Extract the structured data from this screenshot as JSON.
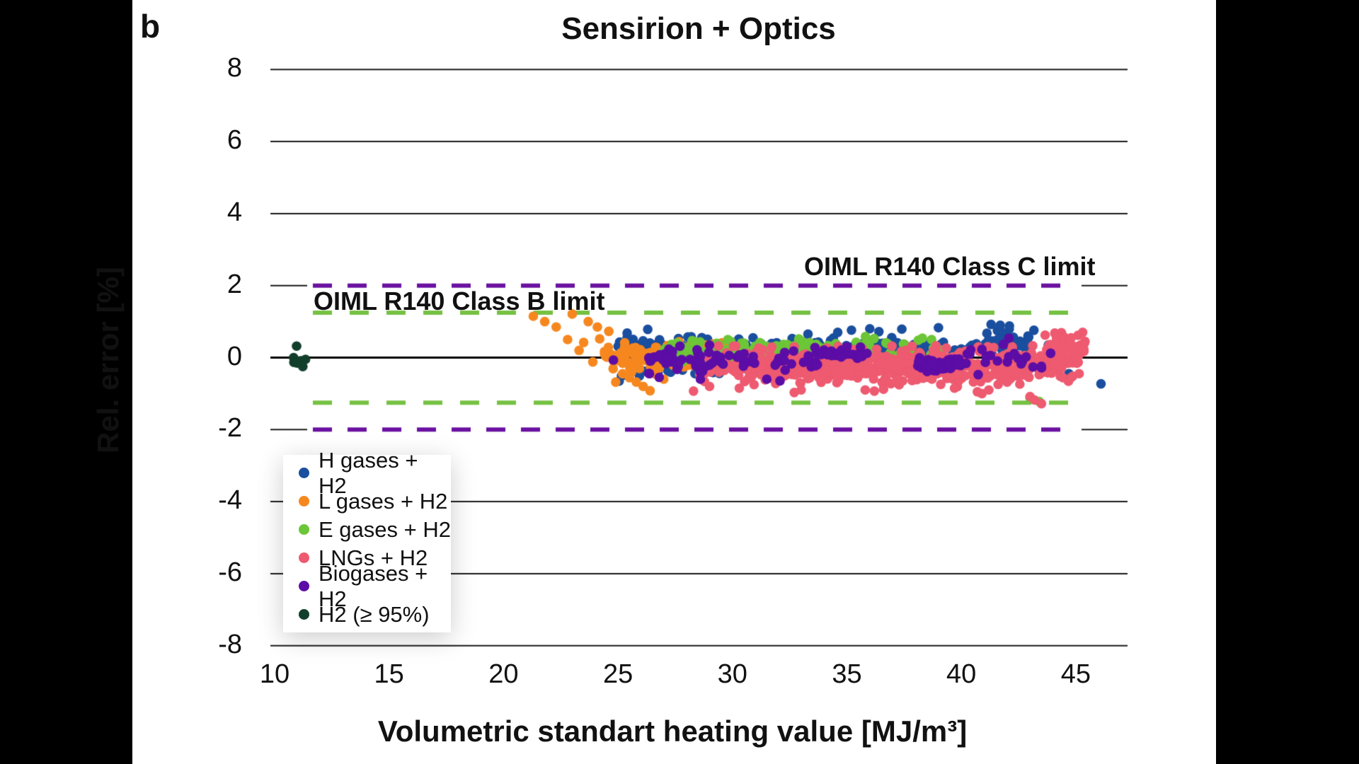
{
  "panel_label": "b",
  "colors": {
    "background": "#000000",
    "panel": "#ffffff",
    "grid": "#1a1a1a",
    "zero_line": "#000000"
  },
  "chart_data": {
    "type": "scatter",
    "title": "Sensirion + Optics",
    "xlabel": "Volumetric standart heating value [MJ/m³]",
    "ylabel": "Rel. error [%]",
    "xlim": [
      9.8,
      47.3
    ],
    "ylim": [
      -8.8,
      8.8
    ],
    "x_ticks": [
      10,
      15,
      20,
      25,
      30,
      35,
      40,
      45
    ],
    "y_ticks": [
      8,
      6,
      4,
      2,
      0,
      -2,
      -4,
      -6,
      -8
    ],
    "grid": "horizontal-only",
    "legend_position": "lower-left",
    "layout": {
      "scatter_seed": 42,
      "point_radius": 6.8
    },
    "limit_lines": [
      {
        "label": "OIML R140 Class C limit",
        "y_abs": 2.0,
        "color": "#6a11a0",
        "style": "dashed"
      },
      {
        "label": "OIML R140 Class B limit",
        "y_abs": 1.25,
        "color": "#76c143",
        "style": "dashed"
      }
    ],
    "series": [
      {
        "name": "H gases + H2",
        "color": "#1a4e9e",
        "clusters": [
          {
            "x0": 25.0,
            "x1": 26.4,
            "y": 0.1,
            "sd": 0.33,
            "n": 26
          },
          {
            "x0": 26.4,
            "x1": 40.6,
            "y": 0.27,
            "sd": 0.13,
            "n": 165
          },
          {
            "x0": 26.6,
            "x1": 29.6,
            "y": -0.3,
            "sd": 0.13,
            "n": 18
          },
          {
            "x0": 40.6,
            "x1": 43.2,
            "y": 0.5,
            "sd": 0.16,
            "n": 40
          }
        ],
        "points": [
          [
            33.3,
            0.65
          ],
          [
            34.6,
            0.7
          ],
          [
            35.2,
            0.76
          ],
          [
            36.0,
            0.8
          ],
          [
            36.4,
            0.72
          ],
          [
            37.4,
            0.79
          ],
          [
            39.0,
            0.83
          ],
          [
            41.3,
            0.92
          ],
          [
            41.7,
            0.9
          ],
          [
            42.1,
            0.88
          ],
          [
            43.8,
            0.35
          ],
          [
            44.7,
            -0.45
          ],
          [
            46.1,
            -0.73
          ],
          [
            30.9,
            0.55
          ],
          [
            28.2,
            0.58
          ],
          [
            25.4,
            0.68
          ],
          [
            43.9,
            -0.3
          ]
        ]
      },
      {
        "name": "L gases + H2",
        "color": "#f6871f",
        "clusters": [
          {
            "x0": 24.4,
            "x1": 30.5,
            "y": 0.07,
            "sd": 0.2,
            "n": 150
          },
          {
            "x0": 29.5,
            "x1": 31.4,
            "y": 0.0,
            "sd": 0.15,
            "n": 15
          }
        ],
        "points": [
          [
            21.3,
            1.15
          ],
          [
            21.8,
            1.0
          ],
          [
            22.3,
            0.85
          ],
          [
            22.8,
            0.5
          ],
          [
            23.0,
            1.21
          ],
          [
            23.7,
            1.0
          ],
          [
            24.1,
            0.85
          ],
          [
            24.6,
            0.73
          ],
          [
            23.3,
            0.2
          ],
          [
            23.9,
            -0.12
          ],
          [
            24.9,
            -0.68
          ],
          [
            25.2,
            -0.45
          ],
          [
            25.5,
            -0.56
          ],
          [
            25.8,
            -0.68
          ],
          [
            26.1,
            -0.8
          ],
          [
            26.4,
            -0.92
          ],
          [
            27.0,
            -0.6
          ],
          [
            26.6,
            -0.45
          ],
          [
            24.2,
            0.52
          ],
          [
            23.5,
            0.42
          ]
        ]
      },
      {
        "name": "E gases + H2",
        "color": "#6cc637",
        "clusters": [
          {
            "x0": 27.0,
            "x1": 34.8,
            "y": 0.16,
            "sd": 0.13,
            "n": 185,
            "ymax": 0.5
          },
          {
            "x0": 34.8,
            "x1": 39.2,
            "y": 0.25,
            "sd": 0.15,
            "n": 28
          }
        ],
        "points": [
          [
            38.3,
            0.54
          ],
          [
            38.7,
            0.5
          ],
          [
            43.0,
            -1.12
          ],
          [
            43.4,
            -1.22
          ],
          [
            29.8,
            0.5
          ],
          [
            32.9,
            0.52
          ]
        ]
      },
      {
        "name": "LNGs + H2",
        "color": "#ee5a70",
        "clusters": [
          {
            "x0": 29.3,
            "x1": 45.2,
            "y": -0.15,
            "sd": 0.22,
            "n": 430,
            "ymax": 0.33,
            "ymin": -0.82
          },
          {
            "x0": 30.5,
            "x1": 43.5,
            "y": -0.45,
            "sd": 0.15,
            "n": 170,
            "ymin": -0.85
          },
          {
            "x0": 43.6,
            "x1": 45.4,
            "y": 0.3,
            "sd": 0.2,
            "n": 45,
            "ymax": 0.72
          },
          {
            "x0": 28.5,
            "x1": 29.3,
            "y": -0.2,
            "sd": 0.2,
            "n": 12
          }
        ],
        "points": [
          [
            28.3,
            -0.93
          ],
          [
            29.0,
            -0.8
          ],
          [
            32.7,
            -0.97
          ],
          [
            33.0,
            -0.9
          ],
          [
            35.8,
            -0.9
          ],
          [
            36.2,
            -0.93
          ],
          [
            36.6,
            -0.88
          ],
          [
            39.7,
            -0.85
          ],
          [
            40.7,
            -0.95
          ],
          [
            40.9,
            -1.0
          ],
          [
            41.2,
            -0.9
          ],
          [
            42.0,
            -0.68
          ],
          [
            43.0,
            -1.08
          ],
          [
            43.2,
            -1.18
          ],
          [
            43.5,
            -1.28
          ],
          [
            45.3,
            0.7
          ],
          [
            45.1,
            0.62
          ],
          [
            44.8,
            0.55
          ],
          [
            45.4,
            0.45
          ],
          [
            30.3,
            -0.85
          ]
        ]
      },
      {
        "name": "Biogases + H2",
        "color": "#5c0da6",
        "clusters": [
          {
            "x0": 26.3,
            "x1": 30.6,
            "y": -0.08,
            "sd": 0.18,
            "n": 60
          },
          {
            "x0": 30.6,
            "x1": 33.8,
            "y": -0.12,
            "sd": 0.22,
            "n": 22
          },
          {
            "x0": 33.8,
            "x1": 35.9,
            "y": 0.1,
            "sd": 0.09,
            "n": 30
          },
          {
            "x0": 38.0,
            "x1": 40.1,
            "y": -0.18,
            "sd": 0.1,
            "n": 48
          },
          {
            "x0": 40.1,
            "x1": 43.6,
            "y": -0.05,
            "sd": 0.2,
            "n": 22
          }
        ],
        "points": [
          [
            43.9,
            0.12
          ],
          [
            28.6,
            -0.6
          ],
          [
            26.8,
            -0.55
          ],
          [
            31.5,
            -0.6
          ],
          [
            35.0,
            0.3
          ],
          [
            29.0,
            0.35
          ],
          [
            24.8,
            -0.07
          ]
        ]
      },
      {
        "name": "H2 (≥ 95%)",
        "color": "#123f2c",
        "clusters": [],
        "points": [
          [
            10.96,
            0.32
          ],
          [
            10.83,
            0.0
          ],
          [
            10.84,
            -0.13
          ],
          [
            11.14,
            -0.09
          ],
          [
            11.35,
            -0.05
          ],
          [
            11.23,
            -0.25
          ],
          [
            10.98,
            -0.15
          ]
        ]
      }
    ]
  }
}
